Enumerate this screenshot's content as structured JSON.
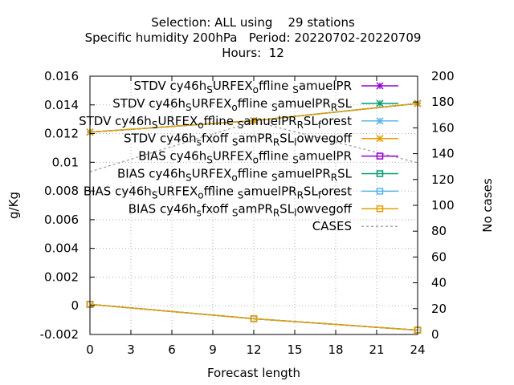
{
  "chart_data": {
    "type": "line",
    "title_lines": [
      "Selection: ALL using    29 stations",
      "Specific humidity 200hPa   Period: 20220702-20220709",
      "Hours:  12"
    ],
    "xlabel": "Forecast length",
    "ylabel": "g/Kg",
    "y2label": "No cases",
    "xlim": [
      0,
      24
    ],
    "ylim": [
      -0.002,
      0.016
    ],
    "y2lim": [
      0,
      200
    ],
    "xticks": [
      0,
      3,
      6,
      9,
      12,
      15,
      18,
      21,
      24
    ],
    "yticks": [
      -0.002,
      0,
      0.002,
      0.004,
      0.006,
      0.008,
      0.01,
      0.012,
      0.014,
      0.016
    ],
    "ytick_labels": [
      "-0.002",
      "0",
      "0.002",
      "0.004",
      "0.006",
      "0.008",
      "0.01",
      "0.012",
      "0.014",
      "0.016"
    ],
    "y2ticks": [
      0,
      20,
      40,
      60,
      80,
      100,
      120,
      140,
      160,
      180,
      200
    ],
    "grid": true,
    "legend_position": "top-right",
    "x": [
      0,
      12,
      24
    ],
    "series": [
      {
        "name": "STDV cy46h_sURFEX_offline_samuelPR",
        "name_parts": [
          [
            "STDV cy46h",
            ""
          ],
          [
            "S",
            "sub"
          ],
          [
            "URFEX",
            ""
          ],
          [
            "o",
            "sub"
          ],
          [
            "ffline ",
            ""
          ],
          [
            "S",
            "sub"
          ],
          [
            "amuelPR",
            ""
          ]
        ],
        "color": "#9400d3",
        "marker": "x",
        "axis": "y1",
        "values": [
          0.0121,
          0.0129,
          0.0141
        ]
      },
      {
        "name": "STDV cy46h_sURFEX_offline_samuelPR_RSL",
        "name_parts": [
          [
            "STDV cy46h",
            ""
          ],
          [
            "S",
            "sub"
          ],
          [
            "URFEX",
            ""
          ],
          [
            "o",
            "sub"
          ],
          [
            "ffline ",
            ""
          ],
          [
            "S",
            "sub"
          ],
          [
            "amuelPR",
            ""
          ],
          [
            "R",
            "sub"
          ],
          [
            "SL",
            ""
          ]
        ],
        "color": "#009e73",
        "marker": "x",
        "axis": "y1",
        "values": [
          0.0121,
          0.0129,
          0.0141
        ]
      },
      {
        "name": "STDV cy46h_sURFEX_offline_samuelPR_RSL_forest",
        "name_parts": [
          [
            "STDV cy46h",
            ""
          ],
          [
            "S",
            "sub"
          ],
          [
            "URFEX",
            ""
          ],
          [
            "o",
            "sub"
          ],
          [
            "ffline ",
            ""
          ],
          [
            "S",
            "sub"
          ],
          [
            "amuelPR",
            ""
          ],
          [
            "R",
            "sub"
          ],
          [
            "SL",
            ""
          ],
          [
            "f",
            "sub"
          ],
          [
            "orest",
            ""
          ]
        ],
        "color": "#56b4e9",
        "marker": "x",
        "axis": "y1",
        "values": [
          0.0121,
          0.0129,
          0.0141
        ]
      },
      {
        "name": "STDV cy46h_sfxoff_samPR_RSL_lowvegoff",
        "name_parts": [
          [
            "STDV cy46h",
            ""
          ],
          [
            "s",
            "sub"
          ],
          [
            "fxoff ",
            ""
          ],
          [
            "S",
            "sub"
          ],
          [
            "amPR",
            ""
          ],
          [
            "R",
            "sub"
          ],
          [
            "SL",
            ""
          ],
          [
            "l",
            "sub"
          ],
          [
            "owvegoff",
            ""
          ]
        ],
        "color": "#e69f00",
        "marker": "x",
        "axis": "y1",
        "values": [
          0.0121,
          0.0129,
          0.0141
        ]
      },
      {
        "name": "BIAS cy46h_sURFEX_offline_samuelPR",
        "name_parts": [
          [
            "BIAS cy46h",
            ""
          ],
          [
            "S",
            "sub"
          ],
          [
            "URFEX",
            ""
          ],
          [
            "o",
            "sub"
          ],
          [
            "ffline ",
            ""
          ],
          [
            "S",
            "sub"
          ],
          [
            "amuelPR",
            ""
          ]
        ],
        "color": "#9400d3",
        "marker": "square",
        "axis": "y1",
        "values": [
          0.0001,
          -0.0009,
          -0.0017
        ]
      },
      {
        "name": "BIAS cy46h_sURFEX_offline_samuelPR_RSL",
        "name_parts": [
          [
            "BIAS cy46h",
            ""
          ],
          [
            "S",
            "sub"
          ],
          [
            "URFEX",
            ""
          ],
          [
            "o",
            "sub"
          ],
          [
            "ffline ",
            ""
          ],
          [
            "S",
            "sub"
          ],
          [
            "amuelPR",
            ""
          ],
          [
            "R",
            "sub"
          ],
          [
            "SL",
            ""
          ]
        ],
        "color": "#009e73",
        "marker": "square",
        "axis": "y1",
        "values": [
          0.0001,
          -0.0009,
          -0.0017
        ]
      },
      {
        "name": "BIAS cy46h_sURFEX_offline_samuelPR_RSL_forest",
        "name_parts": [
          [
            "BIAS cy46h",
            ""
          ],
          [
            "S",
            "sub"
          ],
          [
            "URFEX",
            ""
          ],
          [
            "o",
            "sub"
          ],
          [
            "ffline ",
            ""
          ],
          [
            "S",
            "sub"
          ],
          [
            "amuelPR",
            ""
          ],
          [
            "R",
            "sub"
          ],
          [
            "SL",
            ""
          ],
          [
            "f",
            "sub"
          ],
          [
            "orest",
            ""
          ]
        ],
        "color": "#56b4e9",
        "marker": "square",
        "axis": "y1",
        "values": [
          0.0001,
          -0.0009,
          -0.0017
        ]
      },
      {
        "name": "BIAS cy46h_sfxoff_samPR_RSL_lowvegoff",
        "name_parts": [
          [
            "BIAS cy46h",
            ""
          ],
          [
            "s",
            "sub"
          ],
          [
            "fxoff ",
            ""
          ],
          [
            "S",
            "sub"
          ],
          [
            "amPR",
            ""
          ],
          [
            "R",
            "sub"
          ],
          [
            "SL",
            ""
          ],
          [
            "l",
            "sub"
          ],
          [
            "owvegoff",
            ""
          ]
        ],
        "color": "#e69f00",
        "marker": "square",
        "axis": "y1",
        "values": [
          0.0001,
          -0.0009,
          -0.0017
        ]
      },
      {
        "name": "CASES",
        "name_parts": [
          [
            "CASES",
            ""
          ]
        ],
        "color": "#a0a0a0",
        "marker": "none",
        "dash": true,
        "axis": "y2",
        "values": [
          126,
          165,
          133
        ]
      }
    ]
  }
}
